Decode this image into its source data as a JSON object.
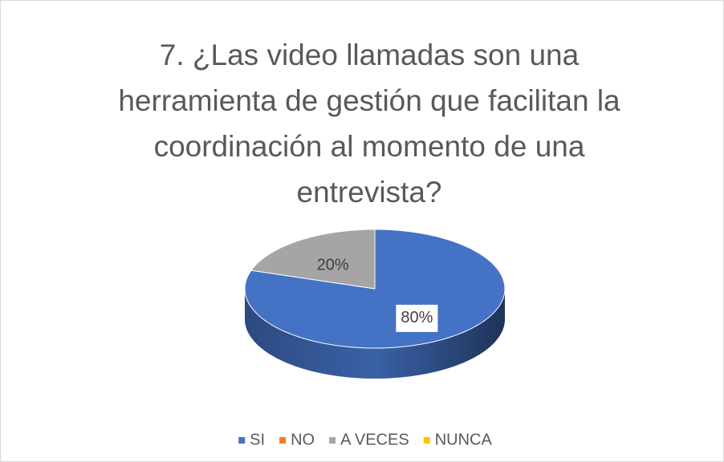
{
  "chart_data": {
    "type": "pie3d",
    "title": "7. ¿Las video llamadas son una herramienta de gestión que facilitan la coordinación al momento de una entrevista?",
    "categories": [
      "SI",
      "NO",
      "A VECES",
      "NUNCA"
    ],
    "values": [
      80,
      0,
      20,
      0
    ],
    "value_labels": [
      "80%",
      null,
      "20%",
      null
    ],
    "colors": [
      "#4472c4",
      "#ed7d31",
      "#a5a5a5",
      "#ffc000"
    ],
    "legend": "bottom"
  }
}
